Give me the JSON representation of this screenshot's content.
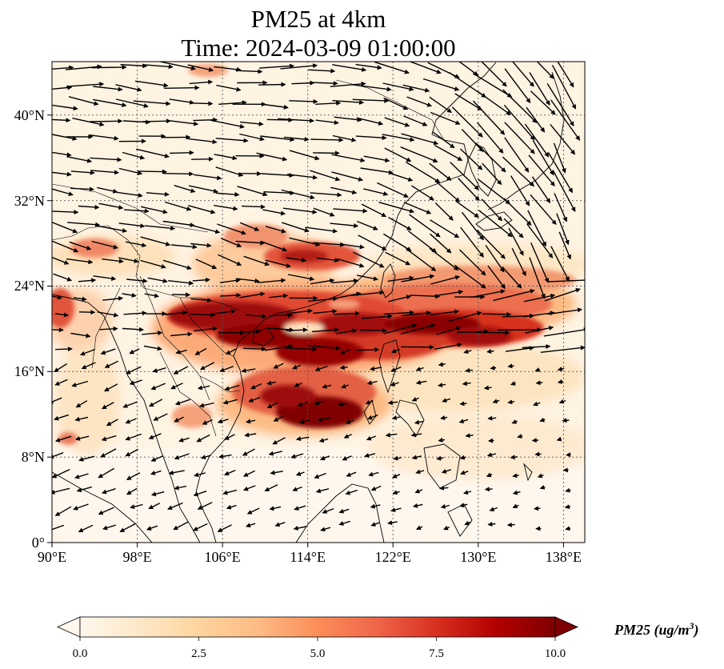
{
  "title_line1": "PM25 at 4km",
  "title_line2": "Time: 2024-03-09 01:00:00",
  "map": {
    "lon_range": [
      90,
      140
    ],
    "lat_range": [
      0,
      45
    ],
    "lon_ticks": [
      "90°E",
      "98°E",
      "106°E",
      "114°E",
      "122°E",
      "130°E",
      "138°E"
    ],
    "lat_ticks": [
      "0°",
      "8°N",
      "16°N",
      "24°N",
      "32°N",
      "40°N"
    ],
    "gridlines": true,
    "colormap": "OrRd",
    "colors": {
      "low": "#fff7ec",
      "mid_low": "#fdd49e",
      "mid": "#f08050",
      "high": "#d7301f",
      "max": "#7f0000",
      "coast": "#000000",
      "grid": "#555555"
    },
    "layers": [
      "pm25-field",
      "coastlines",
      "country-borders",
      "wind-vectors"
    ]
  },
  "colorbar": {
    "label": "PM25 (ug/m³)",
    "label_base": "PM25 (ug/m",
    "label_sup": "3",
    "label_close": ")",
    "ticks": [
      "0.0",
      "2.5",
      "5.0",
      "7.5",
      "10.0"
    ],
    "range": [
      0,
      10
    ],
    "extend": "both"
  }
}
